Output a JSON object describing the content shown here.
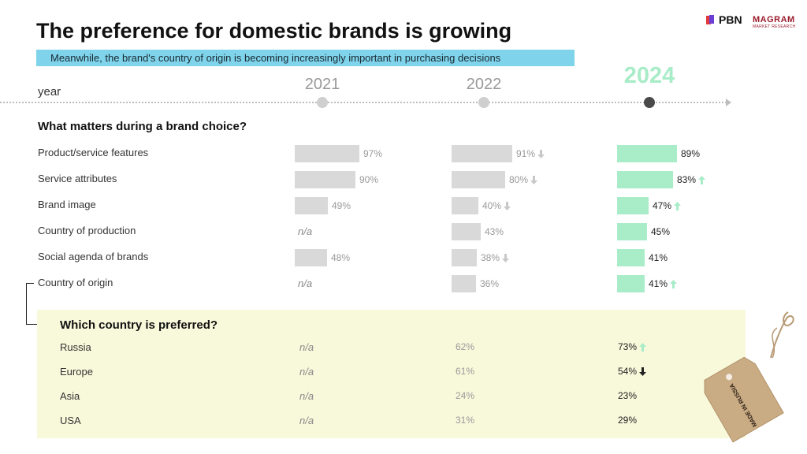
{
  "title": "The preference for domestic brands is growing",
  "subtitle": "Meanwhile, the brand's country of origin is becoming increasingly important in purchasing decisions",
  "logos": {
    "pbn": "PBN",
    "magram": "MAGRAM",
    "magram_sub": "MARKET RESEARCH"
  },
  "timeline": {
    "label": "year",
    "years": [
      "2021",
      "2022",
      "2024"
    ]
  },
  "colors": {
    "accent_green": "#a8ecc8",
    "grey_bar": "#d9d9d9",
    "subtitle_bg": "#7fd3ea",
    "panel_bg": "#f8f9db"
  },
  "chart_data": [
    {
      "type": "bar",
      "title": "What matters during a brand choice?",
      "categories": [
        "Product/service features",
        "Service attributes",
        "Brand image",
        "Country of production",
        "Social agenda of brands",
        "Country of origin"
      ],
      "series": [
        {
          "name": "2021",
          "values": [
            97,
            90,
            49,
            null,
            48,
            null
          ],
          "labels": [
            "97%",
            "90%",
            "49%",
            "n/a",
            "48%",
            "n/a"
          ],
          "trend": [
            "",
            "",
            "",
            "",
            "",
            ""
          ]
        },
        {
          "name": "2022",
          "values": [
            91,
            80,
            40,
            43,
            38,
            36
          ],
          "labels": [
            "91%",
            "80%",
            "40%",
            "43%",
            "38%",
            "36%"
          ],
          "trend": [
            "down",
            "down",
            "down",
            "",
            "down",
            ""
          ]
        },
        {
          "name": "2024",
          "values": [
            89,
            83,
            47,
            45,
            41,
            41
          ],
          "labels": [
            "89%",
            "83%",
            "47%",
            "45%",
            "41%",
            "41%"
          ],
          "trend": [
            "",
            "up",
            "up",
            "",
            "",
            "up"
          ]
        }
      ],
      "ylim": [
        0,
        100
      ]
    },
    {
      "type": "table",
      "title": "Which country is preferred?",
      "categories": [
        "Russia",
        "Europe",
        "Asia",
        "USA"
      ],
      "series": [
        {
          "name": "2021",
          "labels": [
            "n/a",
            "n/a",
            "n/a",
            "n/a"
          ],
          "trend": [
            "",
            "",
            "",
            ""
          ]
        },
        {
          "name": "2022",
          "values": [
            62,
            61,
            24,
            31
          ],
          "labels": [
            "62%",
            "61%",
            "24%",
            "31%"
          ],
          "trend": [
            "",
            "",
            "",
            ""
          ]
        },
        {
          "name": "2024",
          "values": [
            73,
            54,
            23,
            29
          ],
          "labels": [
            "73%",
            "54%",
            "23%",
            "29%"
          ],
          "trend": [
            "up",
            "down-strong",
            "",
            ""
          ]
        }
      ]
    }
  ],
  "tag": {
    "text": "MADE IN RUSSIA",
    "color": "#c9ab84"
  }
}
